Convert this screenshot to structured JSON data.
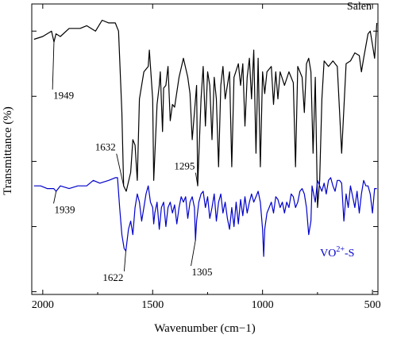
{
  "chart_data": {
    "type": "line",
    "xlabel": "Wavenumber (cm−1)",
    "ylabel": "Transmittance (%)",
    "xlim": [
      2050,
      475
    ],
    "x_reversed": true,
    "y_tick_labels_shown": false,
    "x_ticks": [
      {
        "value": 2000,
        "label": "2000"
      },
      {
        "value": 1500,
        "label": "1500"
      },
      {
        "value": 1000,
        "label": "1000"
      },
      {
        "value": 500,
        "label": "500"
      }
    ],
    "legend": "none; series labeled inline",
    "grid": false,
    "series": [
      {
        "name": "Salen",
        "color": "#000000",
        "points": [
          [
            2040,
            82
          ],
          [
            2000,
            83
          ],
          [
            1960,
            85
          ],
          [
            1949,
            81
          ],
          [
            1940,
            84
          ],
          [
            1920,
            83
          ],
          [
            1880,
            86
          ],
          [
            1830,
            86
          ],
          [
            1800,
            87
          ],
          [
            1760,
            85
          ],
          [
            1730,
            89
          ],
          [
            1700,
            88
          ],
          [
            1670,
            88
          ],
          [
            1655,
            85
          ],
          [
            1640,
            55
          ],
          [
            1632,
            28
          ],
          [
            1620,
            26
          ],
          [
            1600,
            33
          ],
          [
            1590,
            45
          ],
          [
            1580,
            43
          ],
          [
            1570,
            30
          ],
          [
            1560,
            60
          ],
          [
            1540,
            70
          ],
          [
            1520,
            72
          ],
          [
            1515,
            78
          ],
          [
            1500,
            60
          ],
          [
            1495,
            30
          ],
          [
            1480,
            58
          ],
          [
            1470,
            65
          ],
          [
            1465,
            70
          ],
          [
            1455,
            48
          ],
          [
            1450,
            64
          ],
          [
            1440,
            65
          ],
          [
            1430,
            72
          ],
          [
            1420,
            52
          ],
          [
            1410,
            58
          ],
          [
            1400,
            57
          ],
          [
            1380,
            68
          ],
          [
            1360,
            75
          ],
          [
            1340,
            68
          ],
          [
            1330,
            62
          ],
          [
            1320,
            45
          ],
          [
            1300,
            65
          ],
          [
            1295,
            28
          ],
          [
            1280,
            60
          ],
          [
            1270,
            72
          ],
          [
            1260,
            50
          ],
          [
            1250,
            70
          ],
          [
            1240,
            65
          ],
          [
            1230,
            45
          ],
          [
            1220,
            68
          ],
          [
            1210,
            60
          ],
          [
            1200,
            35
          ],
          [
            1190,
            65
          ],
          [
            1180,
            72
          ],
          [
            1170,
            60
          ],
          [
            1150,
            70
          ],
          [
            1140,
            35
          ],
          [
            1130,
            68
          ],
          [
            1110,
            73
          ],
          [
            1100,
            65
          ],
          [
            1090,
            73
          ],
          [
            1080,
            50
          ],
          [
            1070,
            68
          ],
          [
            1060,
            75
          ],
          [
            1050,
            60
          ],
          [
            1040,
            78
          ],
          [
            1030,
            40
          ],
          [
            1020,
            75
          ],
          [
            1010,
            35
          ],
          [
            1000,
            70
          ],
          [
            990,
            62
          ],
          [
            980,
            70
          ],
          [
            960,
            72
          ],
          [
            950,
            58
          ],
          [
            940,
            70
          ],
          [
            930,
            60
          ],
          [
            920,
            70
          ],
          [
            900,
            65
          ],
          [
            880,
            70
          ],
          [
            860,
            66
          ],
          [
            850,
            35
          ],
          [
            840,
            72
          ],
          [
            820,
            68
          ],
          [
            810,
            55
          ],
          [
            800,
            73
          ],
          [
            790,
            75
          ],
          [
            780,
            70
          ],
          [
            770,
            40
          ],
          [
            760,
            68
          ],
          [
            750,
            20
          ],
          [
            740,
            30
          ],
          [
            730,
            60
          ],
          [
            720,
            74
          ],
          [
            700,
            72
          ],
          [
            680,
            74
          ],
          [
            660,
            72
          ],
          [
            640,
            40
          ],
          [
            620,
            73
          ],
          [
            600,
            74
          ],
          [
            580,
            77
          ],
          [
            560,
            76
          ],
          [
            550,
            70
          ],
          [
            540,
            75
          ],
          [
            520,
            84
          ],
          [
            510,
            85
          ],
          [
            500,
            80
          ],
          [
            490,
            75
          ],
          [
            480,
            88
          ]
        ]
      },
      {
        "name": "VO2+-S",
        "color": "#0000cc",
        "points": [
          [
            2040,
            28
          ],
          [
            2010,
            28
          ],
          [
            1980,
            27
          ],
          [
            1950,
            27
          ],
          [
            1939,
            26
          ],
          [
            1920,
            28
          ],
          [
            1880,
            27
          ],
          [
            1840,
            28
          ],
          [
            1800,
            28
          ],
          [
            1770,
            30
          ],
          [
            1740,
            29
          ],
          [
            1700,
            30
          ],
          [
            1670,
            31
          ],
          [
            1660,
            31
          ],
          [
            1650,
            20
          ],
          [
            1640,
            10
          ],
          [
            1630,
            5
          ],
          [
            1622,
            4
          ],
          [
            1610,
            12
          ],
          [
            1600,
            15
          ],
          [
            1590,
            10
          ],
          [
            1580,
            20
          ],
          [
            1570,
            25
          ],
          [
            1560,
            22
          ],
          [
            1550,
            15
          ],
          [
            1540,
            20
          ],
          [
            1530,
            25
          ],
          [
            1520,
            28
          ],
          [
            1510,
            22
          ],
          [
            1500,
            20
          ],
          [
            1495,
            14
          ],
          [
            1490,
            18
          ],
          [
            1480,
            22
          ],
          [
            1470,
            12
          ],
          [
            1460,
            20
          ],
          [
            1450,
            22
          ],
          [
            1440,
            13
          ],
          [
            1430,
            20
          ],
          [
            1420,
            22
          ],
          [
            1410,
            18
          ],
          [
            1400,
            21
          ],
          [
            1390,
            14
          ],
          [
            1380,
            20
          ],
          [
            1370,
            24
          ],
          [
            1360,
            22
          ],
          [
            1350,
            24
          ],
          [
            1340,
            16
          ],
          [
            1330,
            22
          ],
          [
            1320,
            24
          ],
          [
            1310,
            20
          ],
          [
            1305,
            8
          ],
          [
            1300,
            15
          ],
          [
            1290,
            22
          ],
          [
            1280,
            25
          ],
          [
            1270,
            26
          ],
          [
            1260,
            20
          ],
          [
            1250,
            24
          ],
          [
            1240,
            16
          ],
          [
            1230,
            20
          ],
          [
            1220,
            25
          ],
          [
            1210,
            15
          ],
          [
            1200,
            22
          ],
          [
            1190,
            25
          ],
          [
            1180,
            18
          ],
          [
            1170,
            22
          ],
          [
            1160,
            16
          ],
          [
            1150,
            12
          ],
          [
            1140,
            20
          ],
          [
            1130,
            13
          ],
          [
            1120,
            22
          ],
          [
            1110,
            14
          ],
          [
            1100,
            23
          ],
          [
            1090,
            17
          ],
          [
            1080,
            24
          ],
          [
            1070,
            18
          ],
          [
            1060,
            22
          ],
          [
            1050,
            25
          ],
          [
            1040,
            22
          ],
          [
            1030,
            24
          ],
          [
            1020,
            26
          ],
          [
            1010,
            22
          ],
          [
            1000,
            12
          ],
          [
            995,
            2
          ],
          [
            990,
            12
          ],
          [
            980,
            18
          ],
          [
            970,
            20
          ],
          [
            960,
            22
          ],
          [
            950,
            18
          ],
          [
            940,
            24
          ],
          [
            930,
            23
          ],
          [
            920,
            20
          ],
          [
            910,
            22
          ],
          [
            900,
            18
          ],
          [
            890,
            22
          ],
          [
            880,
            20
          ],
          [
            870,
            25
          ],
          [
            860,
            24
          ],
          [
            850,
            20
          ],
          [
            840,
            22
          ],
          [
            830,
            26
          ],
          [
            820,
            27
          ],
          [
            810,
            25
          ],
          [
            800,
            20
          ],
          [
            790,
            10
          ],
          [
            780,
            15
          ],
          [
            775,
            28
          ],
          [
            760,
            22
          ],
          [
            750,
            30
          ],
          [
            740,
            28
          ],
          [
            730,
            26
          ],
          [
            720,
            29
          ],
          [
            710,
            25
          ],
          [
            700,
            30
          ],
          [
            690,
            31
          ],
          [
            680,
            28
          ],
          [
            670,
            26
          ],
          [
            660,
            30
          ],
          [
            650,
            30
          ],
          [
            640,
            29
          ],
          [
            630,
            15
          ],
          [
            620,
            25
          ],
          [
            610,
            20
          ],
          [
            600,
            28
          ],
          [
            590,
            24
          ],
          [
            580,
            20
          ],
          [
            570,
            26
          ],
          [
            560,
            18
          ],
          [
            550,
            25
          ],
          [
            540,
            30
          ],
          [
            530,
            28
          ],
          [
            520,
            28
          ],
          [
            510,
            25
          ],
          [
            500,
            18
          ],
          [
            490,
            27
          ],
          [
            480,
            27
          ]
        ]
      }
    ],
    "series_labels": [
      {
        "key": "salen",
        "text": "Salen",
        "at": [
          560,
          93
        ]
      },
      {
        "key": "vo",
        "text_main": "VO",
        "text_sup": "2+",
        "text_tail": "-S",
        "at": [
          660,
          2
        ]
      }
    ],
    "annotations": [
      {
        "label": "1949",
        "point": [
          1949,
          81
        ],
        "text_at": [
          1905,
          60
        ]
      },
      {
        "label": "1632",
        "point": [
          1632,
          28
        ],
        "text_at": [
          1715,
          41
        ]
      },
      {
        "label": "1295",
        "point": [
          1295,
          28
        ],
        "text_at": [
          1355,
          34
        ]
      },
      {
        "label": "1939",
        "point": [
          1939,
          26
        ],
        "text_at": [
          1900,
          18
        ]
      },
      {
        "label": "1622",
        "point": [
          1622,
          4
        ],
        "text_at": [
          1680,
          -7
        ]
      },
      {
        "label": "1305",
        "point": [
          1305,
          8
        ],
        "text_at": [
          1275,
          -5
        ]
      }
    ]
  }
}
